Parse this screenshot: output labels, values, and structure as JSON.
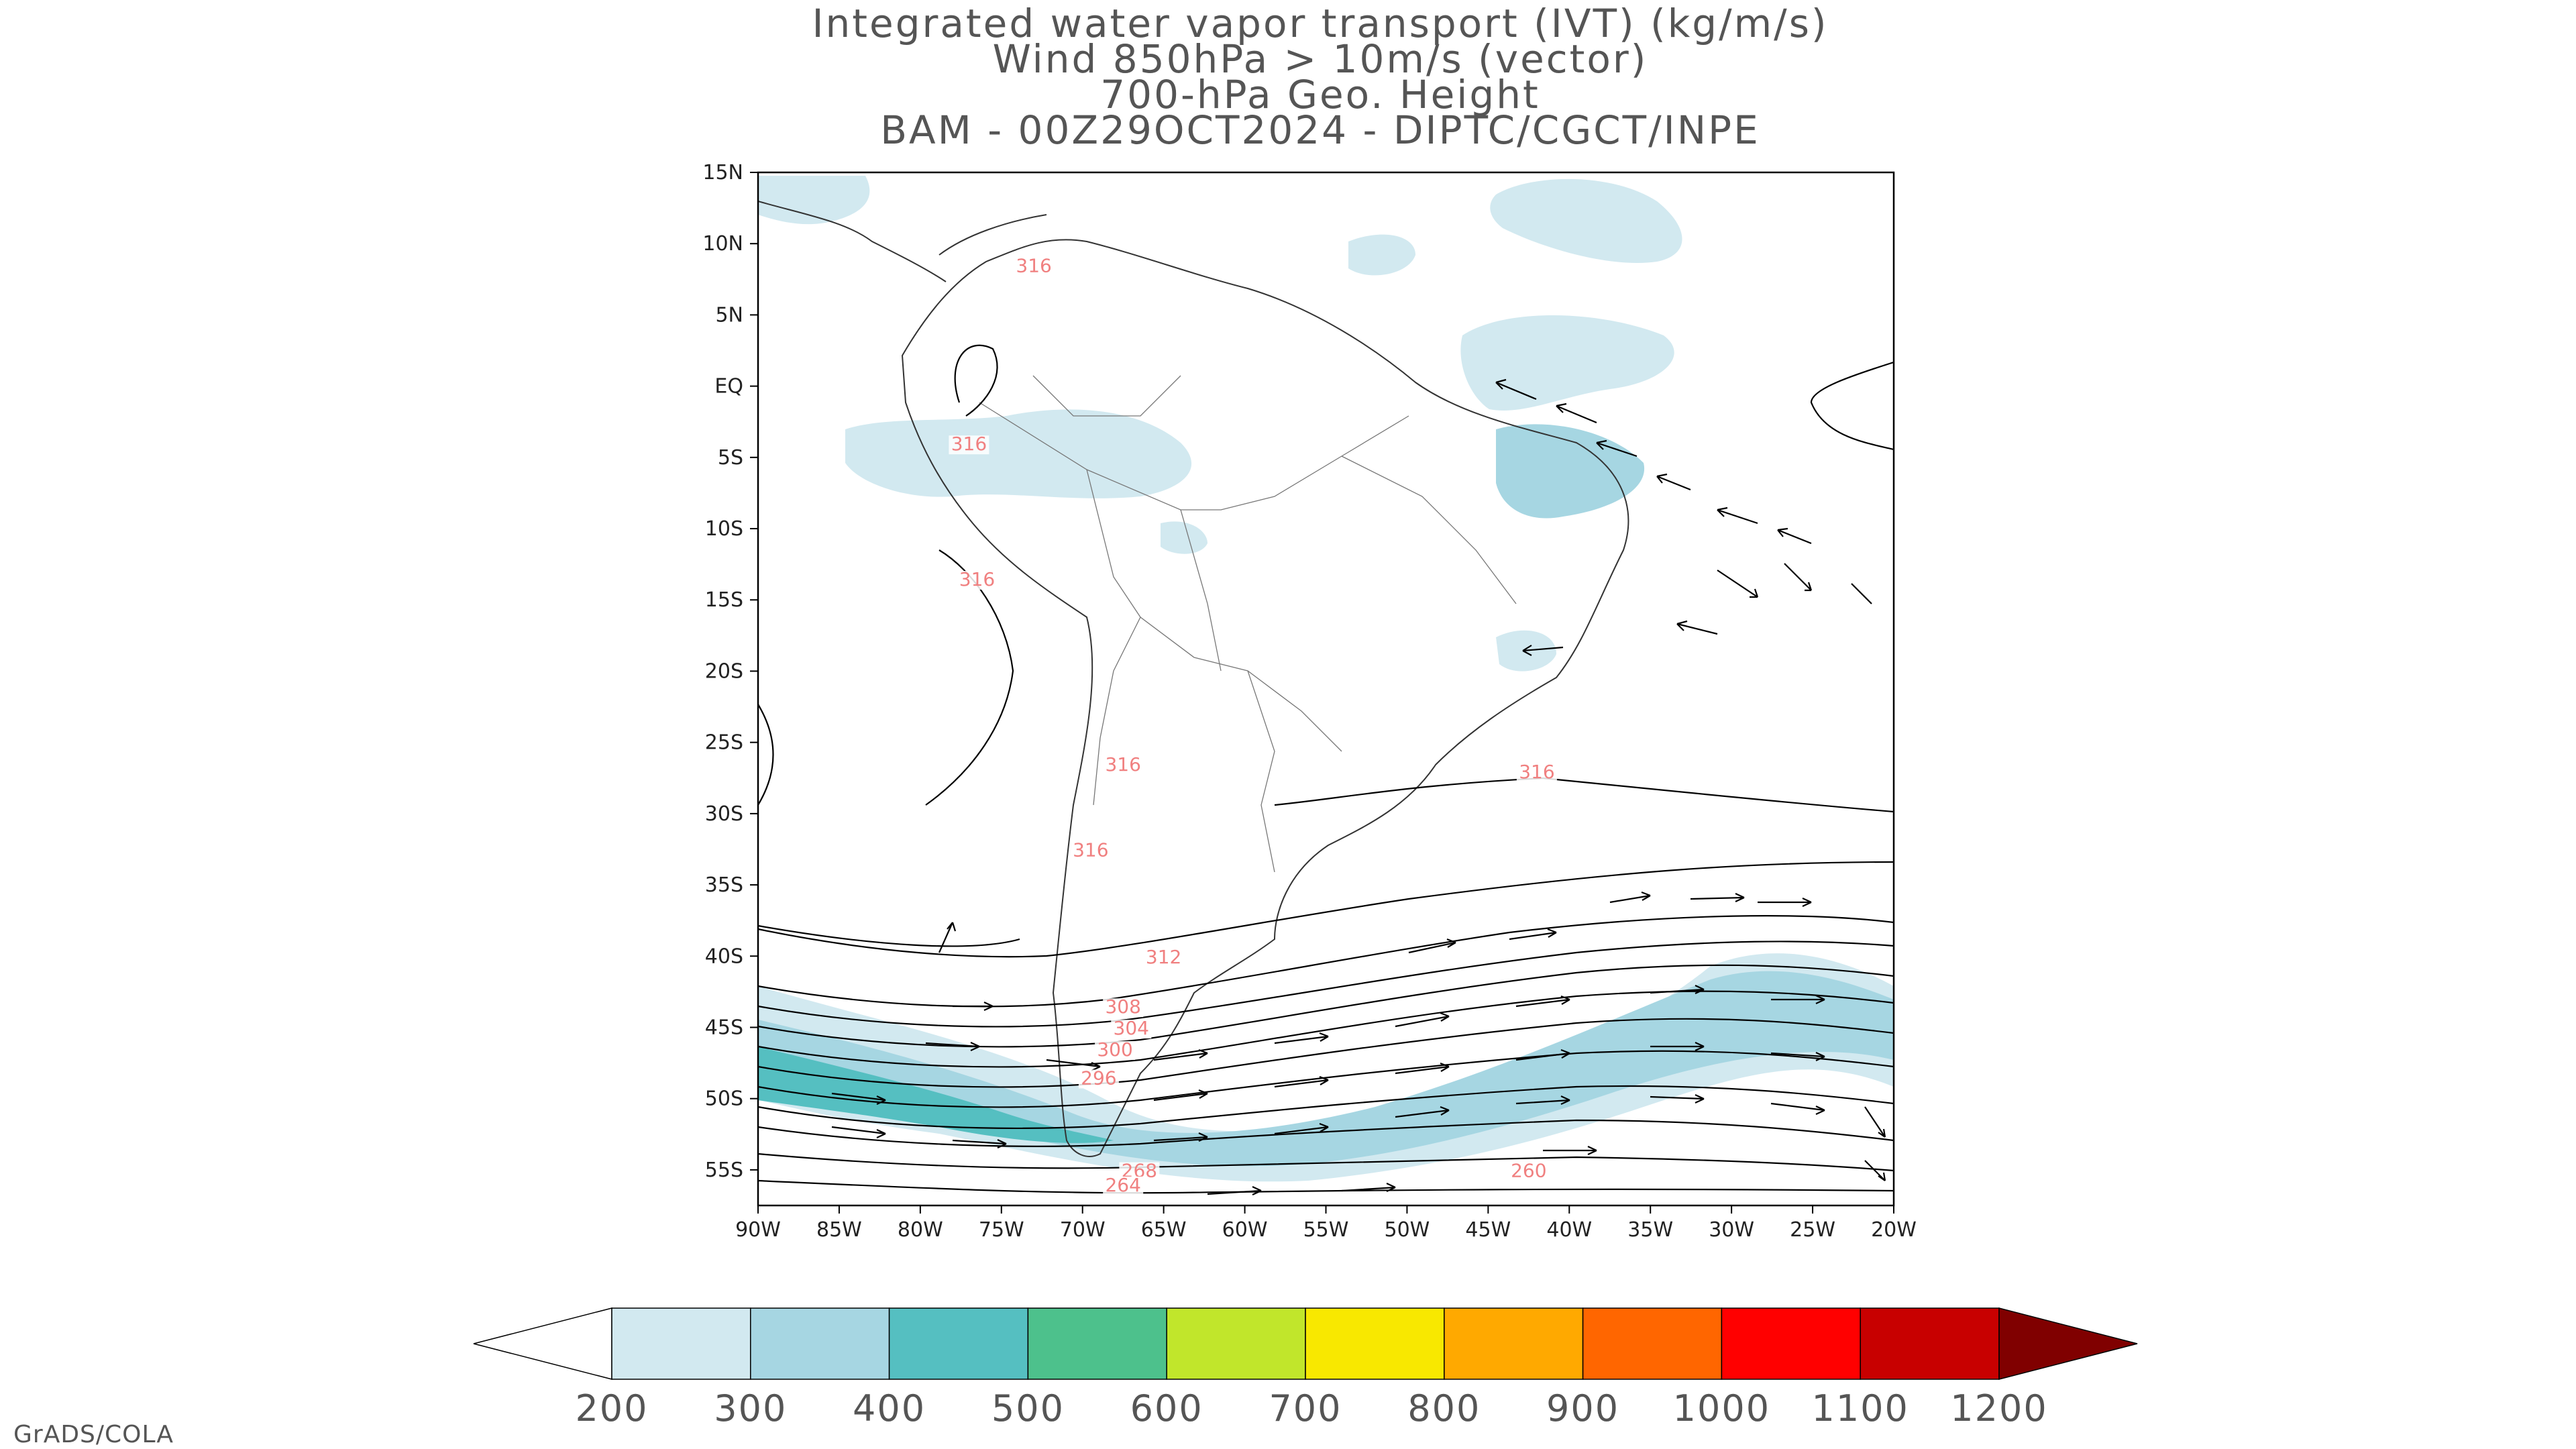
{
  "title": {
    "line1": "Integrated water vapor transport (IVT) (kg/m/s)",
    "line2": "Wind 850hPa > 10m/s (vector)",
    "line3": "700-hPa Geo. Height",
    "line4": "BAM - 00Z29OCT2024 - DIPTC/CGCT/INPE"
  },
  "map": {
    "lon_range": [
      -90,
      -20
    ],
    "lat_range": [
      -57.5,
      15
    ],
    "lat_ticks": [
      {
        "lat": 15,
        "label": "15N"
      },
      {
        "lat": 10,
        "label": "10N"
      },
      {
        "lat": 5,
        "label": "5N"
      },
      {
        "lat": 0,
        "label": "EQ"
      },
      {
        "lat": -5,
        "label": "5S"
      },
      {
        "lat": -10,
        "label": "10S"
      },
      {
        "lat": -15,
        "label": "15S"
      },
      {
        "lat": -20,
        "label": "20S"
      },
      {
        "lat": -25,
        "label": "25S"
      },
      {
        "lat": -30,
        "label": "30S"
      },
      {
        "lat": -35,
        "label": "35S"
      },
      {
        "lat": -40,
        "label": "40S"
      },
      {
        "lat": -45,
        "label": "45S"
      },
      {
        "lat": -50,
        "label": "50S"
      },
      {
        "lat": -55,
        "label": "55S"
      }
    ],
    "lon_ticks": [
      {
        "lon": -90,
        "label": "90W"
      },
      {
        "lon": -85,
        "label": "85W"
      },
      {
        "lon": -80,
        "label": "80W"
      },
      {
        "lon": -75,
        "label": "75W"
      },
      {
        "lon": -70,
        "label": "70W"
      },
      {
        "lon": -65,
        "label": "65W"
      },
      {
        "lon": -60,
        "label": "60W"
      },
      {
        "lon": -55,
        "label": "55W"
      },
      {
        "lon": -50,
        "label": "50W"
      },
      {
        "lon": -45,
        "label": "45W"
      },
      {
        "lon": -40,
        "label": "40W"
      },
      {
        "lon": -35,
        "label": "35W"
      },
      {
        "lon": -30,
        "label": "30W"
      },
      {
        "lon": -25,
        "label": "25W"
      },
      {
        "lon": -20,
        "label": "20W"
      }
    ],
    "contour_labels": [
      {
        "value": "316",
        "lon": -73,
        "lat": 8.0
      },
      {
        "value": "316",
        "lon": -77,
        "lat": -4.5
      },
      {
        "value": "316",
        "lon": -76.5,
        "lat": -14
      },
      {
        "value": "316",
        "lon": -67.5,
        "lat": -27
      },
      {
        "value": "316",
        "lon": -69.5,
        "lat": -33
      },
      {
        "value": "316",
        "lon": -42,
        "lat": -27.5
      },
      {
        "value": "312",
        "lon": -65,
        "lat": -40.5
      },
      {
        "value": "308",
        "lon": -67.5,
        "lat": -44
      },
      {
        "value": "304",
        "lon": -67,
        "lat": -45.5
      },
      {
        "value": "300",
        "lon": -68,
        "lat": -47
      },
      {
        "value": "296",
        "lon": -69,
        "lat": -49
      },
      {
        "value": "268",
        "lon": -66.5,
        "lat": -55.5
      },
      {
        "value": "264",
        "lon": -67.5,
        "lat": -56.5
      },
      {
        "value": "260",
        "lon": -42.5,
        "lat": -55.5
      }
    ]
  },
  "colorbar": {
    "levels": [
      "200",
      "300",
      "400",
      "500",
      "600",
      "700",
      "800",
      "900",
      "1000",
      "1100",
      "1200"
    ],
    "colors": [
      "#d2e9f0",
      "#a6d6e2",
      "#55bfc1",
      "#4dc18c",
      "#c1e62b",
      "#f8e800",
      "#ffa900",
      "#ff6600",
      "#ff0000",
      "#c80000",
      "#800000"
    ],
    "under_color": "#ffffff"
  },
  "credit": "GrADS/COLA"
}
